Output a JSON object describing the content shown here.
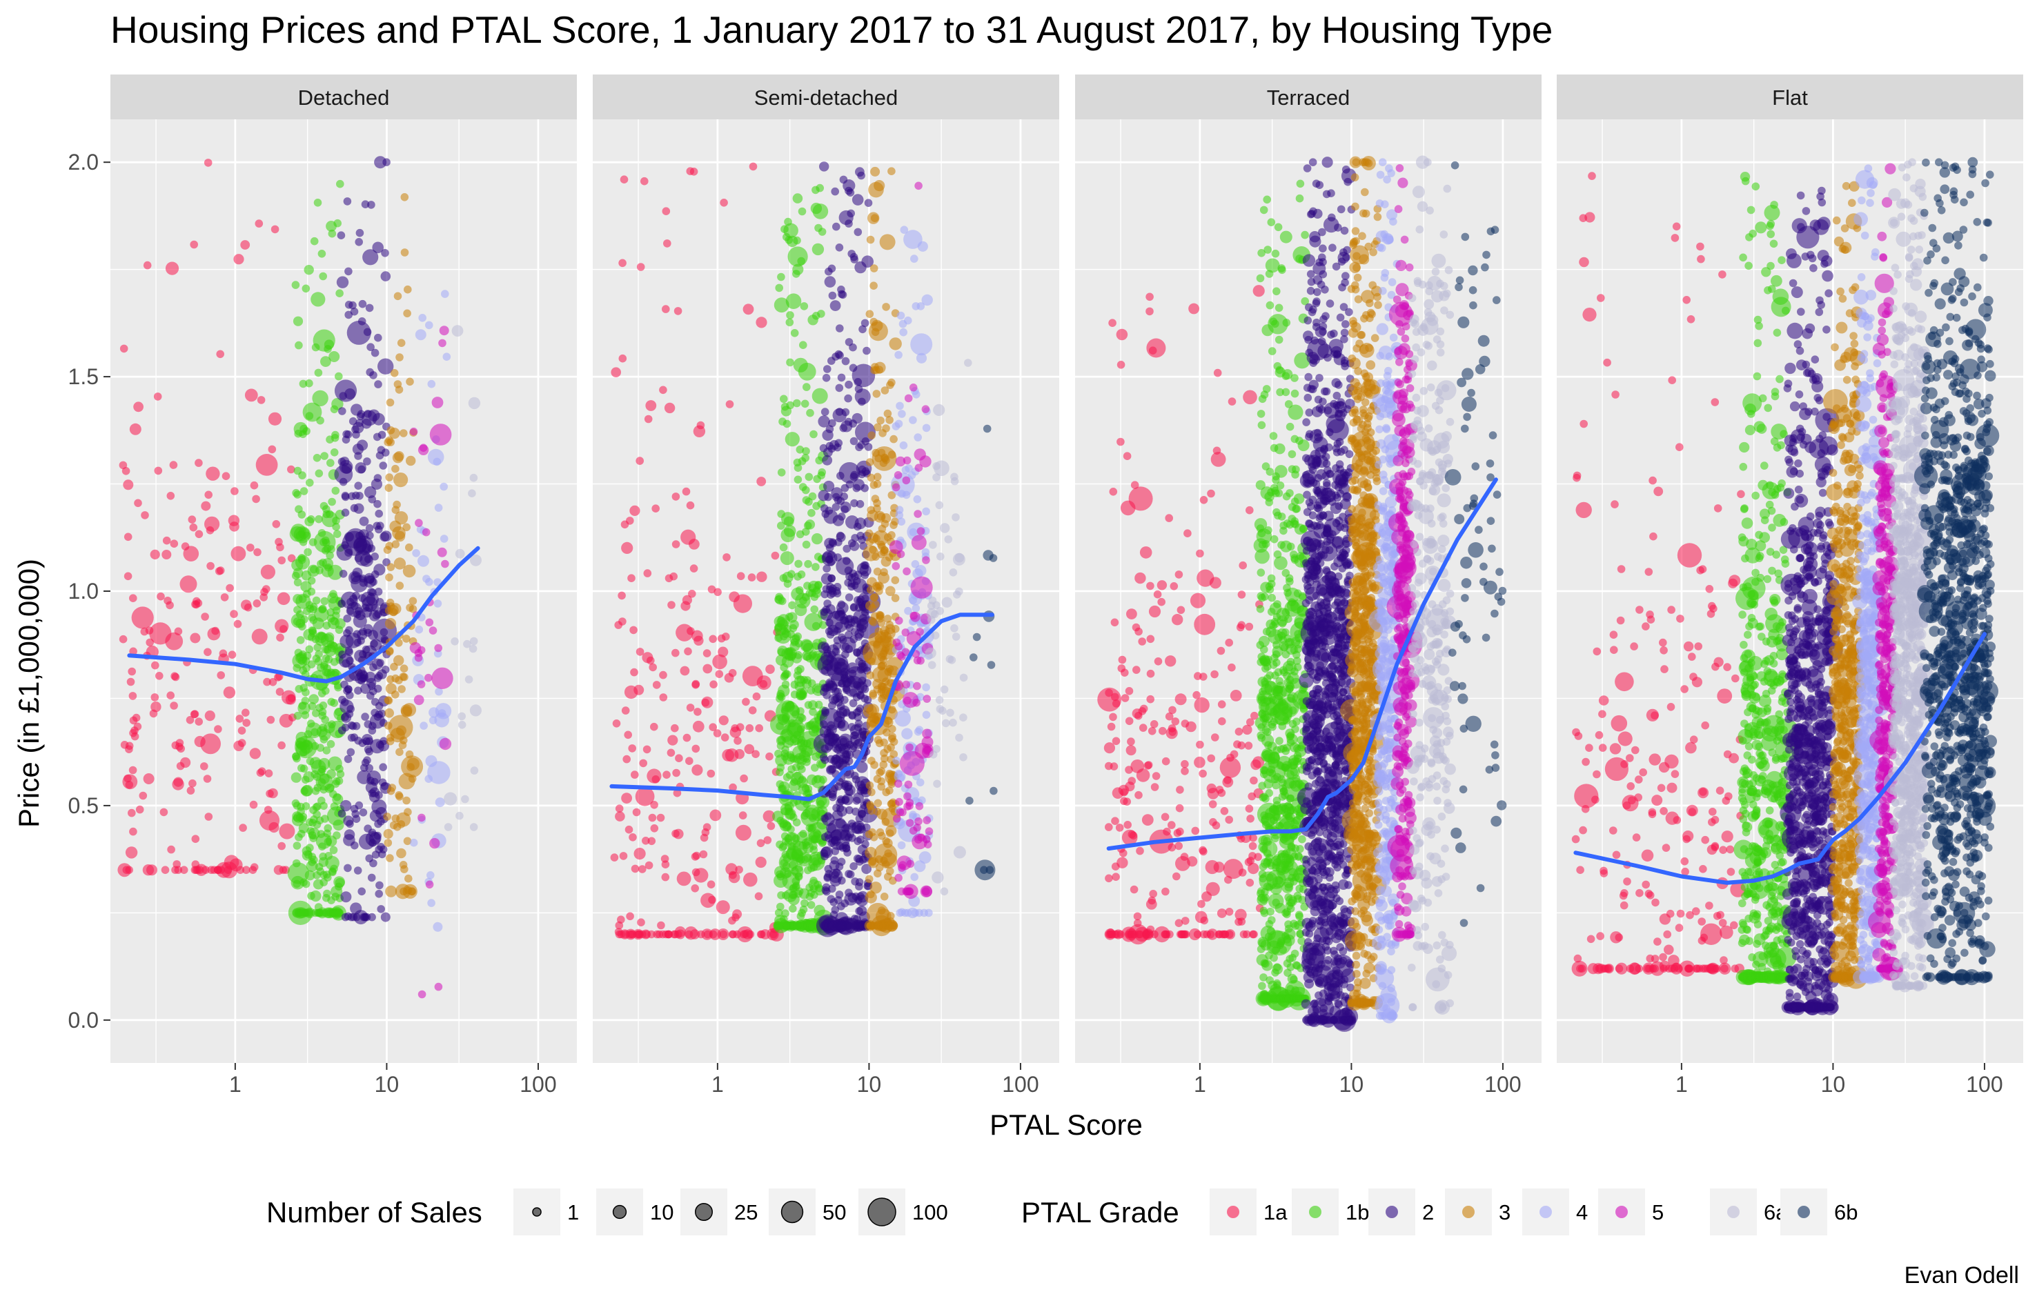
{
  "chart_data": {
    "type": "scatter",
    "title": "Housing Prices and PTAL Score, 1 January 2017 to 31 August 2017, by Housing Type",
    "xlabel": "PTAL Score",
    "ylabel": "Price (in £1,000,000)",
    "x_scale": "log10",
    "xlim": [
      0.15,
      180
    ],
    "x_ticks": [
      1,
      10,
      100
    ],
    "x_tick_labels": [
      "1",
      "10",
      "100"
    ],
    "ylim": [
      -0.1,
      2.1
    ],
    "y_ticks": [
      0,
      0.5,
      1,
      1.5,
      2
    ],
    "y_tick_labels": [
      "0.0",
      "0.5",
      "1.0",
      "1.5",
      "2.0"
    ],
    "grid": true,
    "legend_position": "bottom",
    "caption": "Evan Odell",
    "facets": [
      "Detached",
      "Semi-detached",
      "Terraced",
      "Flat"
    ],
    "size_legend": {
      "title": "Number of Sales",
      "entries": [
        {
          "label": "1",
          "value": 1
        },
        {
          "label": "10",
          "value": 10
        },
        {
          "label": "25",
          "value": 25
        },
        {
          "label": "50",
          "value": 50
        },
        {
          "label": "100",
          "value": 100
        }
      ]
    },
    "color_legend": {
      "title": "PTAL Grade",
      "entries": [
        {
          "label": "1a",
          "color": "#f8174f"
        },
        {
          "label": "1b",
          "color": "#3cd10f"
        },
        {
          "label": "2",
          "color": "#2e0a82"
        },
        {
          "label": "3",
          "color": "#c97f07"
        },
        {
          "label": "4",
          "color": "#a3a9f7"
        },
        {
          "label": "5",
          "color": "#d10fb9"
        },
        {
          "label": "6a",
          "color": "#bcbbd6"
        },
        {
          "label": "6b",
          "color": "#0f2f5e"
        }
      ]
    },
    "grade_bands": [
      {
        "grade": "1a",
        "x_range": [
          0.15,
          2.5
        ]
      },
      {
        "grade": "1b",
        "x_range": [
          2.5,
          5
        ]
      },
      {
        "grade": "2",
        "x_range": [
          5,
          10
        ]
      },
      {
        "grade": "3",
        "x_range": [
          10,
          15
        ]
      },
      {
        "grade": "4",
        "x_range": [
          15,
          20
        ]
      },
      {
        "grade": "5",
        "x_range": [
          20,
          25
        ]
      },
      {
        "grade": "6a",
        "x_range": [
          25,
          40
        ]
      },
      {
        "grade": "6b",
        "x_range": [
          40,
          100
        ]
      }
    ],
    "smooth_line_color": "#3366ff",
    "series": [
      {
        "facet": "Detached",
        "grade_ranges": {
          "1a": {
            "x": [
              0.18,
              2.5
            ],
            "y": [
              0.35,
              2.0
            ],
            "y_center": 0.75,
            "n": 230
          },
          "1b": {
            "x": [
              2.5,
              5
            ],
            "y": [
              0.25,
              1.95
            ],
            "y_center": 0.7,
            "n": 420
          },
          "2": {
            "x": [
              5,
              10
            ],
            "y": [
              0.24,
              2.0
            ],
            "y_center": 0.85,
            "n": 330
          },
          "3": {
            "x": [
              10,
              15
            ],
            "y": [
              0.3,
              1.95
            ],
            "y_center": 0.85,
            "n": 120
          },
          "4": {
            "x": [
              15,
              25
            ],
            "y": [
              0.1,
              1.85
            ],
            "y_center": 0.9,
            "n": 45
          },
          "5": {
            "x": [
              15,
              25
            ],
            "y": [
              0.06,
              2.0
            ],
            "y_center": 0.8,
            "n": 30
          },
          "6a": {
            "x": [
              25,
              40
            ],
            "y": [
              0.45,
              1.65
            ],
            "y_center": 0.9,
            "n": 20
          }
        },
        "smooth": {
          "x": [
            0.2,
            0.5,
            1,
            2,
            3,
            4,
            5,
            7,
            10,
            15,
            20,
            30,
            40
          ],
          "y": [
            0.85,
            0.84,
            0.83,
            0.81,
            0.795,
            0.79,
            0.8,
            0.83,
            0.87,
            0.93,
            0.99,
            1.06,
            1.1
          ]
        }
      },
      {
        "facet": "Semi-detached",
        "grade_ranges": {
          "1a": {
            "x": [
              0.2,
              2.5
            ],
            "y": [
              0.2,
              2.0
            ],
            "y_center": 0.45,
            "n": 260
          },
          "1b": {
            "x": [
              2.5,
              5
            ],
            "y": [
              0.22,
              1.95
            ],
            "y_center": 0.55,
            "n": 560
          },
          "2": {
            "x": [
              5,
              10
            ],
            "y": [
              0.22,
              2.0
            ],
            "y_center": 0.65,
            "n": 640
          },
          "3": {
            "x": [
              10,
              15
            ],
            "y": [
              0.22,
              2.0
            ],
            "y_center": 0.7,
            "n": 300
          },
          "4": {
            "x": [
              15,
              25
            ],
            "y": [
              0.25,
              1.95
            ],
            "y_center": 0.8,
            "n": 140
          },
          "5": {
            "x": [
              15,
              25
            ],
            "y": [
              0.3,
              1.95
            ],
            "y_center": 0.75,
            "n": 90
          },
          "6a": {
            "x": [
              25,
              45
            ],
            "y": [
              0.3,
              1.9
            ],
            "y_center": 0.9,
            "n": 50
          },
          "6b": {
            "x": [
              45,
              70
            ],
            "y": [
              0.35,
              1.8
            ],
            "y_center": 0.7,
            "n": 12
          }
        },
        "smooth": {
          "x": [
            0.2,
            0.5,
            1,
            2,
            3,
            4,
            5,
            6,
            7,
            8,
            9,
            10,
            12,
            15,
            20,
            30,
            40,
            65
          ],
          "y": [
            0.545,
            0.54,
            0.535,
            0.525,
            0.52,
            0.515,
            0.53,
            0.56,
            0.585,
            0.59,
            0.62,
            0.66,
            0.69,
            0.79,
            0.87,
            0.93,
            0.945,
            0.945
          ]
        }
      },
      {
        "facet": "Terraced",
        "grade_ranges": {
          "1a": {
            "x": [
              0.25,
              2.5
            ],
            "y": [
              0.2,
              1.7
            ],
            "y_center": 0.42,
            "n": 280
          },
          "1b": {
            "x": [
              2.5,
              5
            ],
            "y": [
              0.05,
              1.95
            ],
            "y_center": 0.55,
            "n": 680
          },
          "2": {
            "x": [
              5,
              10
            ],
            "y": [
              0.0,
              2.0
            ],
            "y_center": 0.7,
            "n": 1100
          },
          "3": {
            "x": [
              10,
              15
            ],
            "y": [
              0.04,
              2.0
            ],
            "y_center": 0.8,
            "n": 700
          },
          "4": {
            "x": [
              15,
              20
            ],
            "y": [
              0.01,
              2.0
            ],
            "y_center": 0.85,
            "n": 380
          },
          "5": {
            "x": [
              20,
              25
            ],
            "y": [
              0.2,
              2.0
            ],
            "y_center": 0.9,
            "n": 300
          },
          "6a": {
            "x": [
              25,
              45
            ],
            "y": [
              0.03,
              2.0
            ],
            "y_center": 0.95,
            "n": 320
          },
          "6b": {
            "x": [
              45,
              100
            ],
            "y": [
              0.2,
              2.0
            ],
            "y_center": 1.1,
            "n": 70
          }
        },
        "smooth": {
          "x": [
            0.25,
            0.5,
            1,
            2,
            3,
            4,
            5,
            6,
            7,
            8,
            10,
            12,
            15,
            20,
            30,
            50,
            90
          ],
          "y": [
            0.4,
            0.415,
            0.425,
            0.435,
            0.44,
            0.44,
            0.445,
            0.48,
            0.52,
            0.53,
            0.56,
            0.6,
            0.7,
            0.83,
            0.97,
            1.12,
            1.26
          ]
        }
      },
      {
        "facet": "Flat",
        "grade_ranges": {
          "1a": {
            "x": [
              0.2,
              2.5
            ],
            "y": [
              0.12,
              2.0
            ],
            "y_center": 0.4,
            "n": 240
          },
          "1b": {
            "x": [
              2.5,
              5
            ],
            "y": [
              0.1,
              2.0
            ],
            "y_center": 0.42,
            "n": 560
          },
          "2": {
            "x": [
              5,
              10
            ],
            "y": [
              0.03,
              1.95
            ],
            "y_center": 0.5,
            "n": 900
          },
          "3": {
            "x": [
              10,
              15
            ],
            "y": [
              0.1,
              1.95
            ],
            "y_center": 0.65,
            "n": 560
          },
          "4": {
            "x": [
              15,
              20
            ],
            "y": [
              0.1,
              2.0
            ],
            "y_center": 0.7,
            "n": 420
          },
          "5": {
            "x": [
              20,
              25
            ],
            "y": [
              0.12,
              2.0
            ],
            "y_center": 0.75,
            "n": 360
          },
          "6a": {
            "x": [
              25,
              40
            ],
            "y": [
              0.08,
              2.0
            ],
            "y_center": 0.8,
            "n": 800
          },
          "6b": {
            "x": [
              40,
              110
            ],
            "y": [
              0.1,
              2.0
            ],
            "y_center": 0.85,
            "n": 1000
          }
        },
        "smooth": {
          "x": [
            0.2,
            0.5,
            1,
            2,
            3,
            4,
            5,
            6,
            7,
            8,
            9,
            10,
            12,
            15,
            20,
            30,
            50,
            100
          ],
          "y": [
            0.39,
            0.36,
            0.335,
            0.32,
            0.325,
            0.335,
            0.35,
            0.365,
            0.37,
            0.375,
            0.4,
            0.42,
            0.44,
            0.47,
            0.52,
            0.6,
            0.72,
            0.9
          ]
        }
      }
    ]
  }
}
